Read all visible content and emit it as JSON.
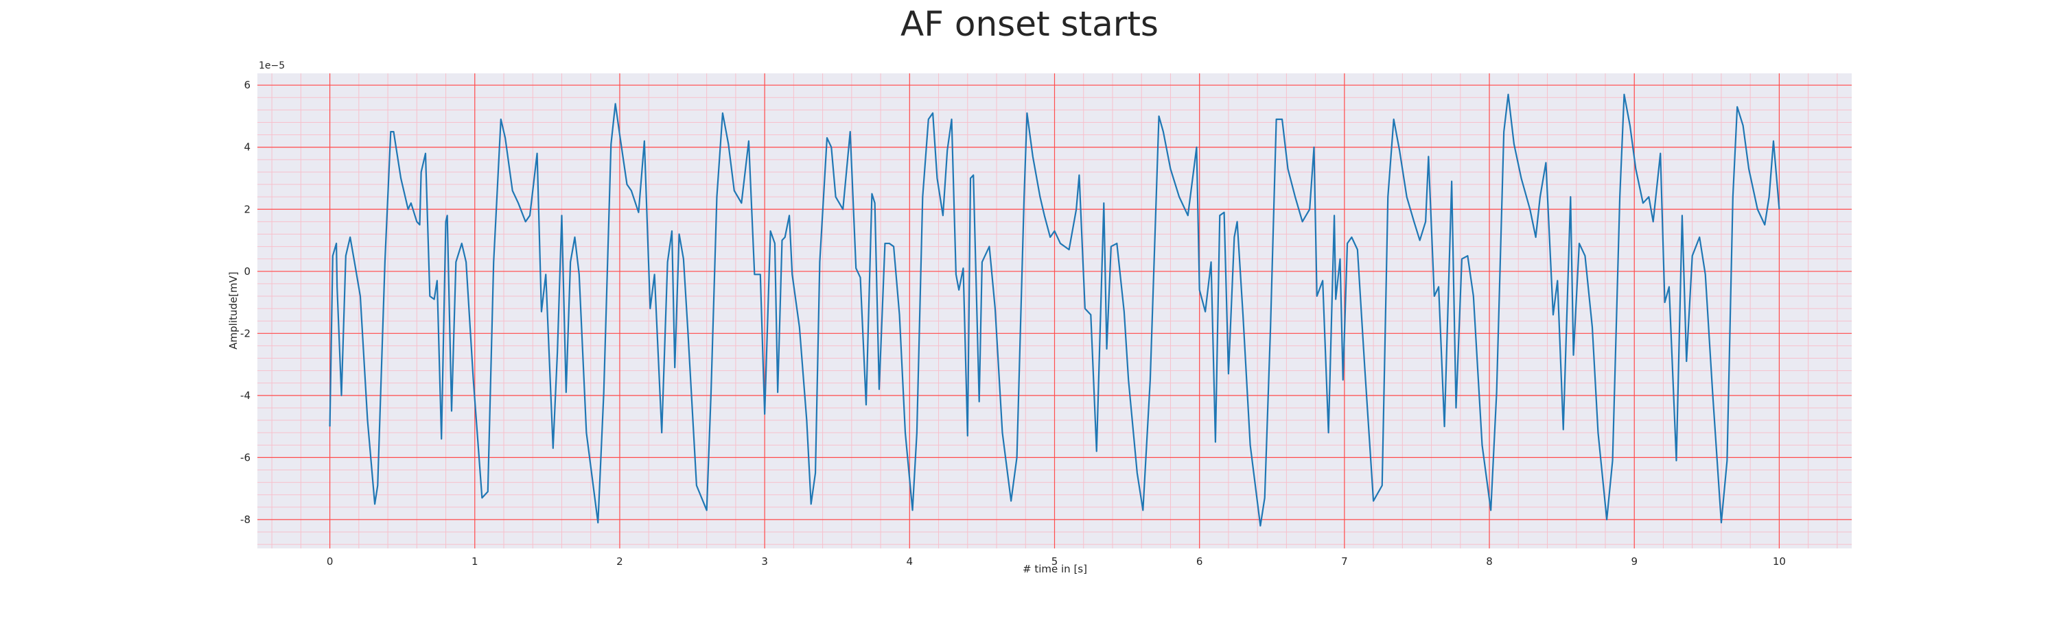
{
  "chart_data": {
    "type": "line",
    "title": "AF onset starts",
    "xlabel": "# time in [s]",
    "ylabel": "Amplitude[mV]",
    "y_offset_text": "1e−5",
    "x": [
      0,
      0.02,
      0.045,
      0.05,
      0.08,
      0.11,
      0.14,
      0.17,
      0.21,
      0.26,
      0.31,
      0.33,
      0.38,
      0.42,
      0.44,
      0.49,
      0.54,
      0.56,
      0.6,
      0.62,
      0.63,
      0.66,
      0.69,
      0.72,
      0.74,
      0.77,
      0.8,
      0.81,
      0.84,
      0.87,
      0.91,
      0.94,
      0.99,
      1.05,
      1.09,
      1.13,
      1.18,
      1.21,
      1.26,
      1.3,
      1.35,
      1.38,
      1.43,
      1.46,
      1.49,
      1.54,
      1.57,
      1.6,
      1.63,
      1.66,
      1.69,
      1.72,
      1.77,
      1.85,
      1.89,
      1.94,
      1.97,
      2.0,
      2.05,
      2.08,
      2.13,
      2.17,
      2.21,
      2.24,
      2.29,
      2.33,
      2.36,
      2.38,
      2.41,
      2.44,
      2.47,
      2.53,
      2.6,
      2.63,
      2.67,
      2.71,
      2.75,
      2.79,
      2.84,
      2.89,
      2.93,
      2.97,
      3.0,
      3.04,
      3.07,
      3.09,
      3.12,
      3.14,
      3.17,
      3.19,
      3.24,
      3.29,
      3.32,
      3.35,
      3.38,
      3.43,
      3.46,
      3.49,
      3.54,
      3.59,
      3.63,
      3.66,
      3.7,
      3.74,
      3.76,
      3.79,
      3.83,
      3.86,
      3.89,
      3.93,
      3.97,
      4.02,
      4.05,
      4.09,
      4.13,
      4.16,
      4.19,
      4.23,
      4.26,
      4.29,
      4.32,
      4.34,
      4.37,
      4.4,
      4.42,
      4.44,
      4.48,
      4.5,
      4.55,
      4.59,
      4.64,
      4.7,
      4.74,
      4.79,
      4.81,
      4.85,
      4.9,
      4.93,
      4.97,
      5.0,
      5.04,
      5.1,
      5.15,
      5.17,
      5.21,
      5.25,
      5.29,
      5.34,
      5.36,
      5.39,
      5.43,
      5.48,
      5.51,
      5.57,
      5.61,
      5.66,
      5.72,
      5.75,
      5.8,
      5.86,
      5.92,
      5.98,
      6.0,
      6.04,
      6.08,
      6.11,
      6.14,
      6.17,
      6.2,
      6.24,
      6.26,
      6.3,
      6.35,
      6.42,
      6.45,
      6.49,
      6.53,
      6.57,
      6.61,
      6.66,
      6.71,
      6.76,
      6.79,
      6.81,
      6.85,
      6.89,
      6.93,
      6.94,
      6.97,
      6.99,
      7.02,
      7.05,
      7.09,
      7.14,
      7.2,
      7.26,
      7.3,
      7.34,
      7.38,
      7.43,
      7.48,
      7.52,
      7.56,
      7.58,
      7.62,
      7.65,
      7.69,
      7.74,
      7.77,
      7.81,
      7.85,
      7.89,
      7.95,
      8.01,
      8.05,
      8.1,
      8.13,
      8.17,
      8.22,
      8.28,
      8.32,
      8.35,
      8.39,
      8.44,
      8.47,
      8.51,
      8.56,
      8.58,
      8.62,
      8.66,
      8.71,
      8.75,
      8.81,
      8.85,
      8.9,
      8.93,
      8.97,
      9.01,
      9.06,
      9.1,
      9.13,
      9.18,
      9.21,
      9.24,
      9.29,
      9.33,
      9.36,
      9.4,
      9.45,
      9.49,
      9.54,
      9.6,
      9.64,
      9.68,
      9.71,
      9.75,
      9.79,
      9.85,
      9.9,
      9.93,
      9.96,
      10.0
    ],
    "values": [
      -5.0,
      0.5,
      0.9,
      -0.5,
      -4.0,
      0.5,
      1.1,
      0.3,
      -0.8,
      -4.8,
      -7.5,
      -6.9,
      0.3,
      4.5,
      4.5,
      3.0,
      2.0,
      2.2,
      1.6,
      1.5,
      3.2,
      3.8,
      -0.8,
      -0.9,
      -0.3,
      -5.4,
      1.6,
      1.8,
      -4.5,
      0.3,
      0.9,
      0.3,
      -3.5,
      -7.3,
      -7.1,
      0.3,
      4.9,
      4.3,
      2.6,
      2.2,
      1.6,
      1.8,
      3.8,
      -1.3,
      -0.1,
      -5.7,
      -2.6,
      1.8,
      -3.9,
      0.3,
      1.1,
      -0.1,
      -5.2,
      -8.1,
      -3.9,
      4.1,
      5.4,
      4.4,
      2.8,
      2.6,
      1.9,
      4.2,
      -1.2,
      -0.1,
      -5.2,
      0.3,
      1.3,
      -3.1,
      1.2,
      0.4,
      -1.9,
      -6.9,
      -7.7,
      -3.9,
      2.4,
      5.1,
      4.1,
      2.6,
      2.2,
      4.2,
      -0.1,
      -0.1,
      -4.6,
      1.3,
      0.9,
      -3.9,
      1.0,
      1.1,
      1.8,
      -0.1,
      -1.8,
      -4.8,
      -7.5,
      -6.5,
      0.3,
      4.3,
      4.0,
      2.4,
      2.0,
      4.5,
      0.1,
      -0.2,
      -4.3,
      2.5,
      2.2,
      -3.8,
      0.9,
      0.9,
      0.8,
      -1.4,
      -5.2,
      -7.7,
      -5.2,
      2.4,
      4.9,
      5.1,
      3.0,
      1.8,
      3.9,
      4.9,
      -0.1,
      -0.6,
      0.1,
      -5.3,
      3.0,
      3.1,
      -4.2,
      0.3,
      0.8,
      -1.2,
      -5.2,
      -7.4,
      -6.0,
      2.4,
      5.1,
      3.7,
      2.4,
      1.8,
      1.1,
      1.3,
      0.9,
      0.7,
      2.0,
      3.1,
      -1.2,
      -1.4,
      -5.8,
      2.2,
      -2.5,
      0.8,
      0.9,
      -1.3,
      -3.5,
      -6.5,
      -7.7,
      -3.5,
      5.0,
      4.5,
      3.3,
      2.4,
      1.8,
      4.0,
      -0.6,
      -1.3,
      0.3,
      -5.5,
      1.8,
      1.9,
      -3.3,
      1.1,
      1.6,
      -1.4,
      -5.6,
      -8.2,
      -7.3,
      -1.8,
      4.9,
      4.9,
      3.3,
      2.4,
      1.6,
      2.0,
      4.0,
      -0.8,
      -0.3,
      -5.2,
      1.8,
      -0.9,
      0.4,
      -3.5,
      0.9,
      1.1,
      0.7,
      -3.1,
      -7.4,
      -6.9,
      2.4,
      4.9,
      3.9,
      2.4,
      1.6,
      1.0,
      1.6,
      3.7,
      -0.8,
      -0.5,
      -5.0,
      2.9,
      -4.4,
      0.4,
      0.5,
      -0.8,
      -5.6,
      -7.7,
      -3.9,
      4.5,
      5.7,
      4.1,
      3.0,
      2.0,
      1.1,
      2.4,
      3.5,
      -1.4,
      -0.3,
      -5.1,
      2.4,
      -2.7,
      0.9,
      0.5,
      -1.8,
      -5.2,
      -8.0,
      -6.1,
      2.4,
      5.7,
      4.7,
      3.3,
      2.2,
      2.4,
      1.6,
      3.8,
      -1.0,
      -0.5,
      -6.1,
      1.8,
      -2.9,
      0.5,
      1.1,
      -0.1,
      -3.9,
      -8.1,
      -6.1,
      2.4,
      5.3,
      4.7,
      3.3,
      2.0,
      1.5,
      2.4,
      4.2,
      2.0
    ],
    "color": "#1f77b4",
    "xlim": [
      -0.5,
      10.5
    ],
    "xticks": [
      0,
      1,
      2,
      3,
      4,
      5,
      6,
      7,
      8,
      9,
      10
    ],
    "ylim": [
      -8.93,
      6.38
    ],
    "yticks": [
      -8,
      -6,
      -4,
      -2,
      0,
      2,
      4,
      6
    ],
    "grid": true,
    "grid_color": "#ff4d4d",
    "minor_grid": true,
    "minor_grid_color": "#f7c0cc",
    "background": "#eaeaf2"
  }
}
